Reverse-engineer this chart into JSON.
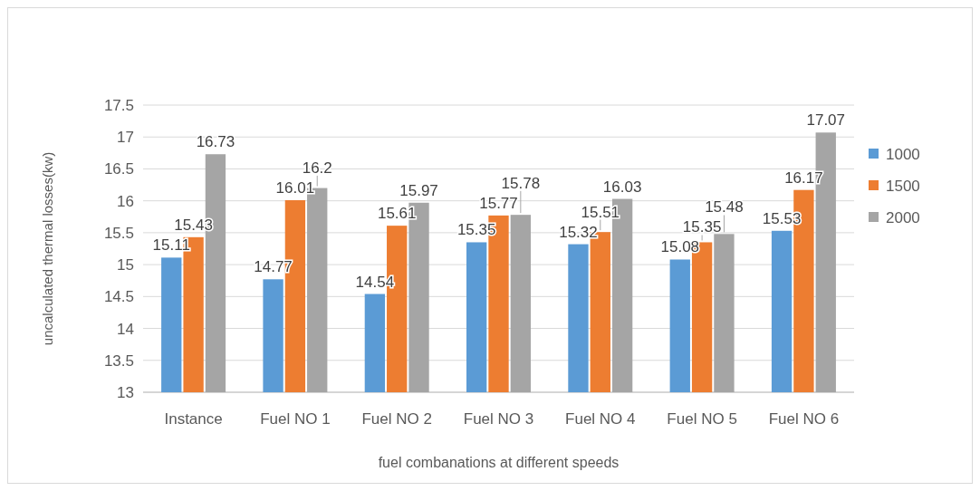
{
  "chart_data": {
    "type": "bar",
    "xlabel": "fuel combanations at different speeds",
    "ylabel": "uncalculated thermal losses(kw)",
    "categories": [
      "Instance",
      "Fuel NO 1",
      "Fuel NO 2",
      "Fuel NO 3",
      "Fuel NO 4",
      "Fuel NO 5",
      "Fuel NO 6"
    ],
    "series": [
      {
        "name": "1000",
        "color": "#5b9bd5",
        "values": [
          15.11,
          14.77,
          14.54,
          15.35,
          15.32,
          15.08,
          15.53
        ]
      },
      {
        "name": "1500",
        "color": "#ed7d31",
        "values": [
          15.43,
          16.01,
          15.61,
          15.77,
          15.51,
          15.35,
          16.17
        ]
      },
      {
        "name": "2000",
        "color": "#a5a5a5",
        "values": [
          16.73,
          16.2,
          15.97,
          15.78,
          16.03,
          15.48,
          17.07
        ]
      }
    ],
    "ylim": [
      13,
      17.5
    ],
    "yticks": [
      13,
      13.5,
      14,
      14.5,
      15,
      15.5,
      16,
      16.5,
      17,
      17.5
    ],
    "grid": "y",
    "legend": "right",
    "data_labels": true
  }
}
